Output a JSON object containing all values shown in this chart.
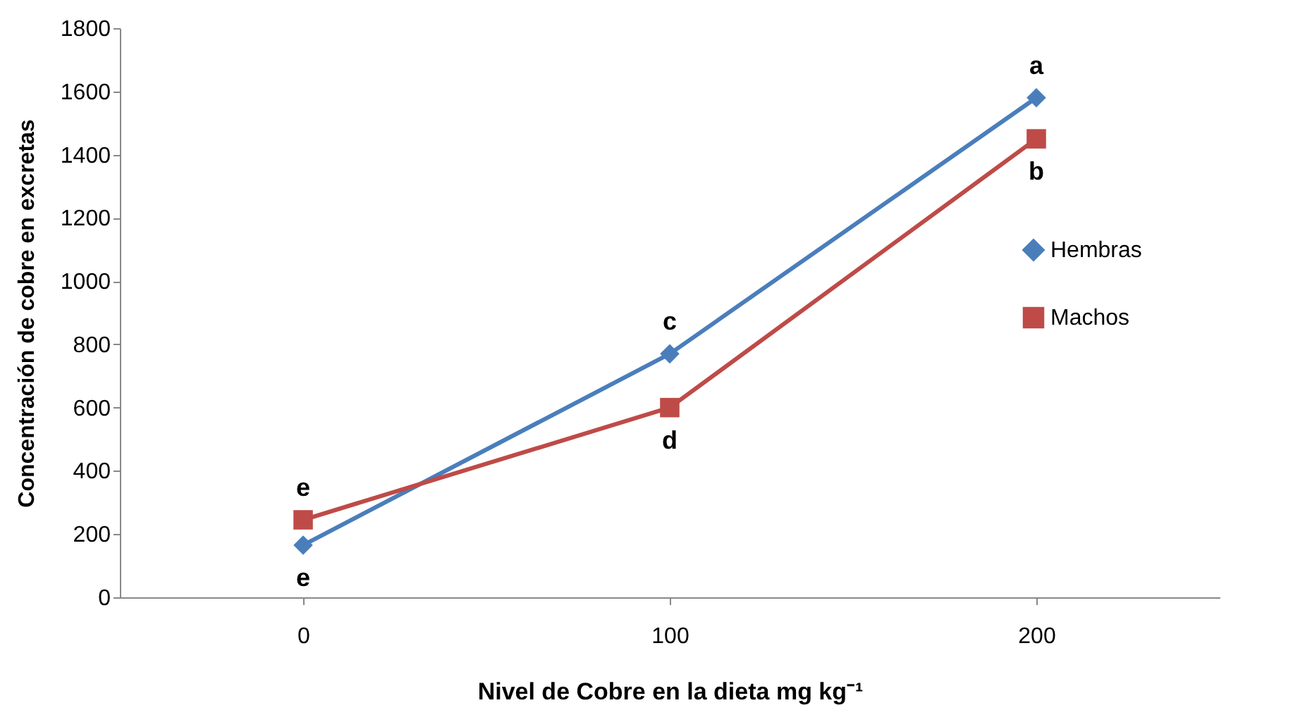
{
  "chart_data": {
    "type": "line",
    "xlabel": "Nivel de Cobre en la dieta mg kg⁻¹",
    "ylabel": "Concentración de cobre en excretas",
    "categories": [
      "0",
      "100",
      "200"
    ],
    "series": [
      {
        "name": "Hembras",
        "color": "#4a7ebb",
        "marker": "diamond",
        "values": [
          165,
          770,
          1580
        ]
      },
      {
        "name": "Machos",
        "color": "#be4b48",
        "marker": "square",
        "values": [
          245,
          600,
          1450
        ]
      }
    ],
    "ylim": [
      0,
      1800
    ],
    "yticks": [
      0,
      200,
      400,
      600,
      800,
      1000,
      1200,
      1400,
      1600,
      1800
    ],
    "grid": false,
    "legend": "right",
    "annotations": [
      {
        "text": "a",
        "x": "200",
        "y": 1580
      },
      {
        "text": "b",
        "x": "200",
        "y": 1450
      },
      {
        "text": "c",
        "x": "100",
        "y": 770
      },
      {
        "text": "d",
        "x": "100",
        "y": 600
      },
      {
        "text": "e",
        "x": "0",
        "y": 245
      },
      {
        "text": "e",
        "x": "0",
        "y": 165
      }
    ]
  }
}
